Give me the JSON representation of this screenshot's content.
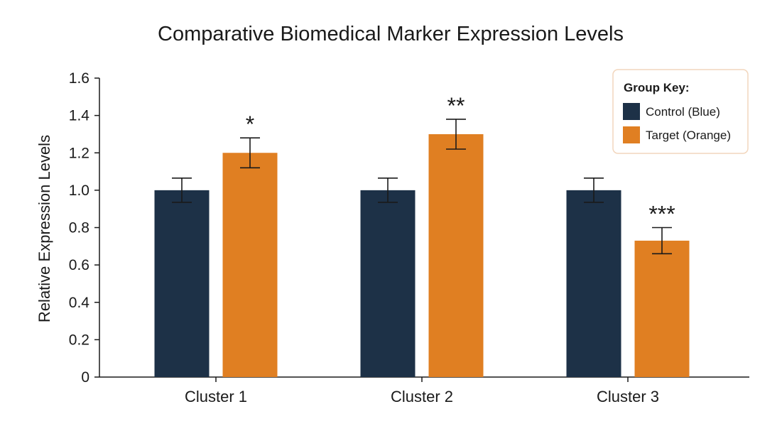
{
  "chart_data": {
    "type": "bar",
    "title": "Comparative Biomedical Marker Expression Levels",
    "xlabel": "",
    "ylabel": "Relative Expression Levels",
    "ylim": [
      0,
      1.6
    ],
    "yticks": [
      "0",
      "0.2",
      "0.4",
      "0.6",
      "0.8",
      "1.0",
      "1.2",
      "1.4",
      "1.6"
    ],
    "categories": [
      "Cluster 1",
      "Cluster 2",
      "Cluster 3"
    ],
    "series": [
      {
        "name": "Control (Blue)",
        "color": "#1d3147",
        "values": [
          1.0,
          1.0,
          1.0
        ],
        "errors": [
          0.065,
          0.065,
          0.065
        ]
      },
      {
        "name": "Target (Orange)",
        "color": "#e07f22",
        "values": [
          1.2,
          1.3,
          0.73
        ],
        "errors": [
          0.08,
          0.08,
          0.07
        ]
      }
    ],
    "significance": [
      "*",
      "**",
      "***"
    ],
    "legend": {
      "title": "Group Key:",
      "placement": "top-right"
    },
    "grid": false
  }
}
